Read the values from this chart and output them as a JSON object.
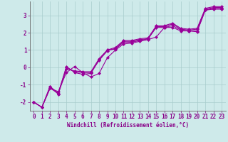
{
  "xlabel": "Windchill (Refroidissement éolien,°C)",
  "background_color": "#ceeaea",
  "grid_color": "#a8cccc",
  "line_color": "#990099",
  "marker": "D",
  "marker_size": 2.0,
  "linewidth": 0.8,
  "xlim": [
    -0.5,
    23.5
  ],
  "ylim": [
    -2.5,
    3.8
  ],
  "yticks": [
    -2,
    -1,
    0,
    1,
    2,
    3
  ],
  "xticks": [
    0,
    1,
    2,
    3,
    4,
    5,
    6,
    7,
    8,
    9,
    10,
    11,
    12,
    13,
    14,
    15,
    16,
    17,
    18,
    19,
    20,
    21,
    22,
    23
  ],
  "xlabel_fontsize": 5.5,
  "tick_fontsize": 5.5,
  "series": [
    [
      -2.0,
      -2.3,
      -1.2,
      -1.4,
      -0.3,
      0.05,
      -0.3,
      -0.55,
      -0.35,
      0.55,
      1.0,
      1.35,
      1.4,
      1.5,
      1.6,
      1.75,
      2.3,
      2.3,
      2.1,
      2.1,
      2.05,
      3.3,
      3.35,
      3.35
    ],
    [
      -2.0,
      -2.3,
      -1.2,
      -1.5,
      0.05,
      -0.3,
      -0.4,
      -0.35,
      0.45,
      1.0,
      1.05,
      1.45,
      1.45,
      1.55,
      1.65,
      2.3,
      2.3,
      2.4,
      2.15,
      2.1,
      2.1,
      3.3,
      3.4,
      3.4
    ],
    [
      -2.0,
      -2.3,
      -1.1,
      -1.5,
      0.0,
      -0.25,
      -0.3,
      -0.3,
      0.4,
      0.95,
      1.1,
      1.5,
      1.5,
      1.6,
      1.65,
      2.35,
      2.35,
      2.5,
      2.2,
      2.15,
      2.2,
      3.35,
      3.45,
      3.45
    ],
    [
      -2.0,
      -2.3,
      -1.1,
      -1.55,
      -0.1,
      -0.2,
      -0.25,
      -0.25,
      0.5,
      1.0,
      1.15,
      1.55,
      1.55,
      1.65,
      1.7,
      2.4,
      2.4,
      2.55,
      2.25,
      2.2,
      2.25,
      3.4,
      3.5,
      3.5
    ]
  ]
}
